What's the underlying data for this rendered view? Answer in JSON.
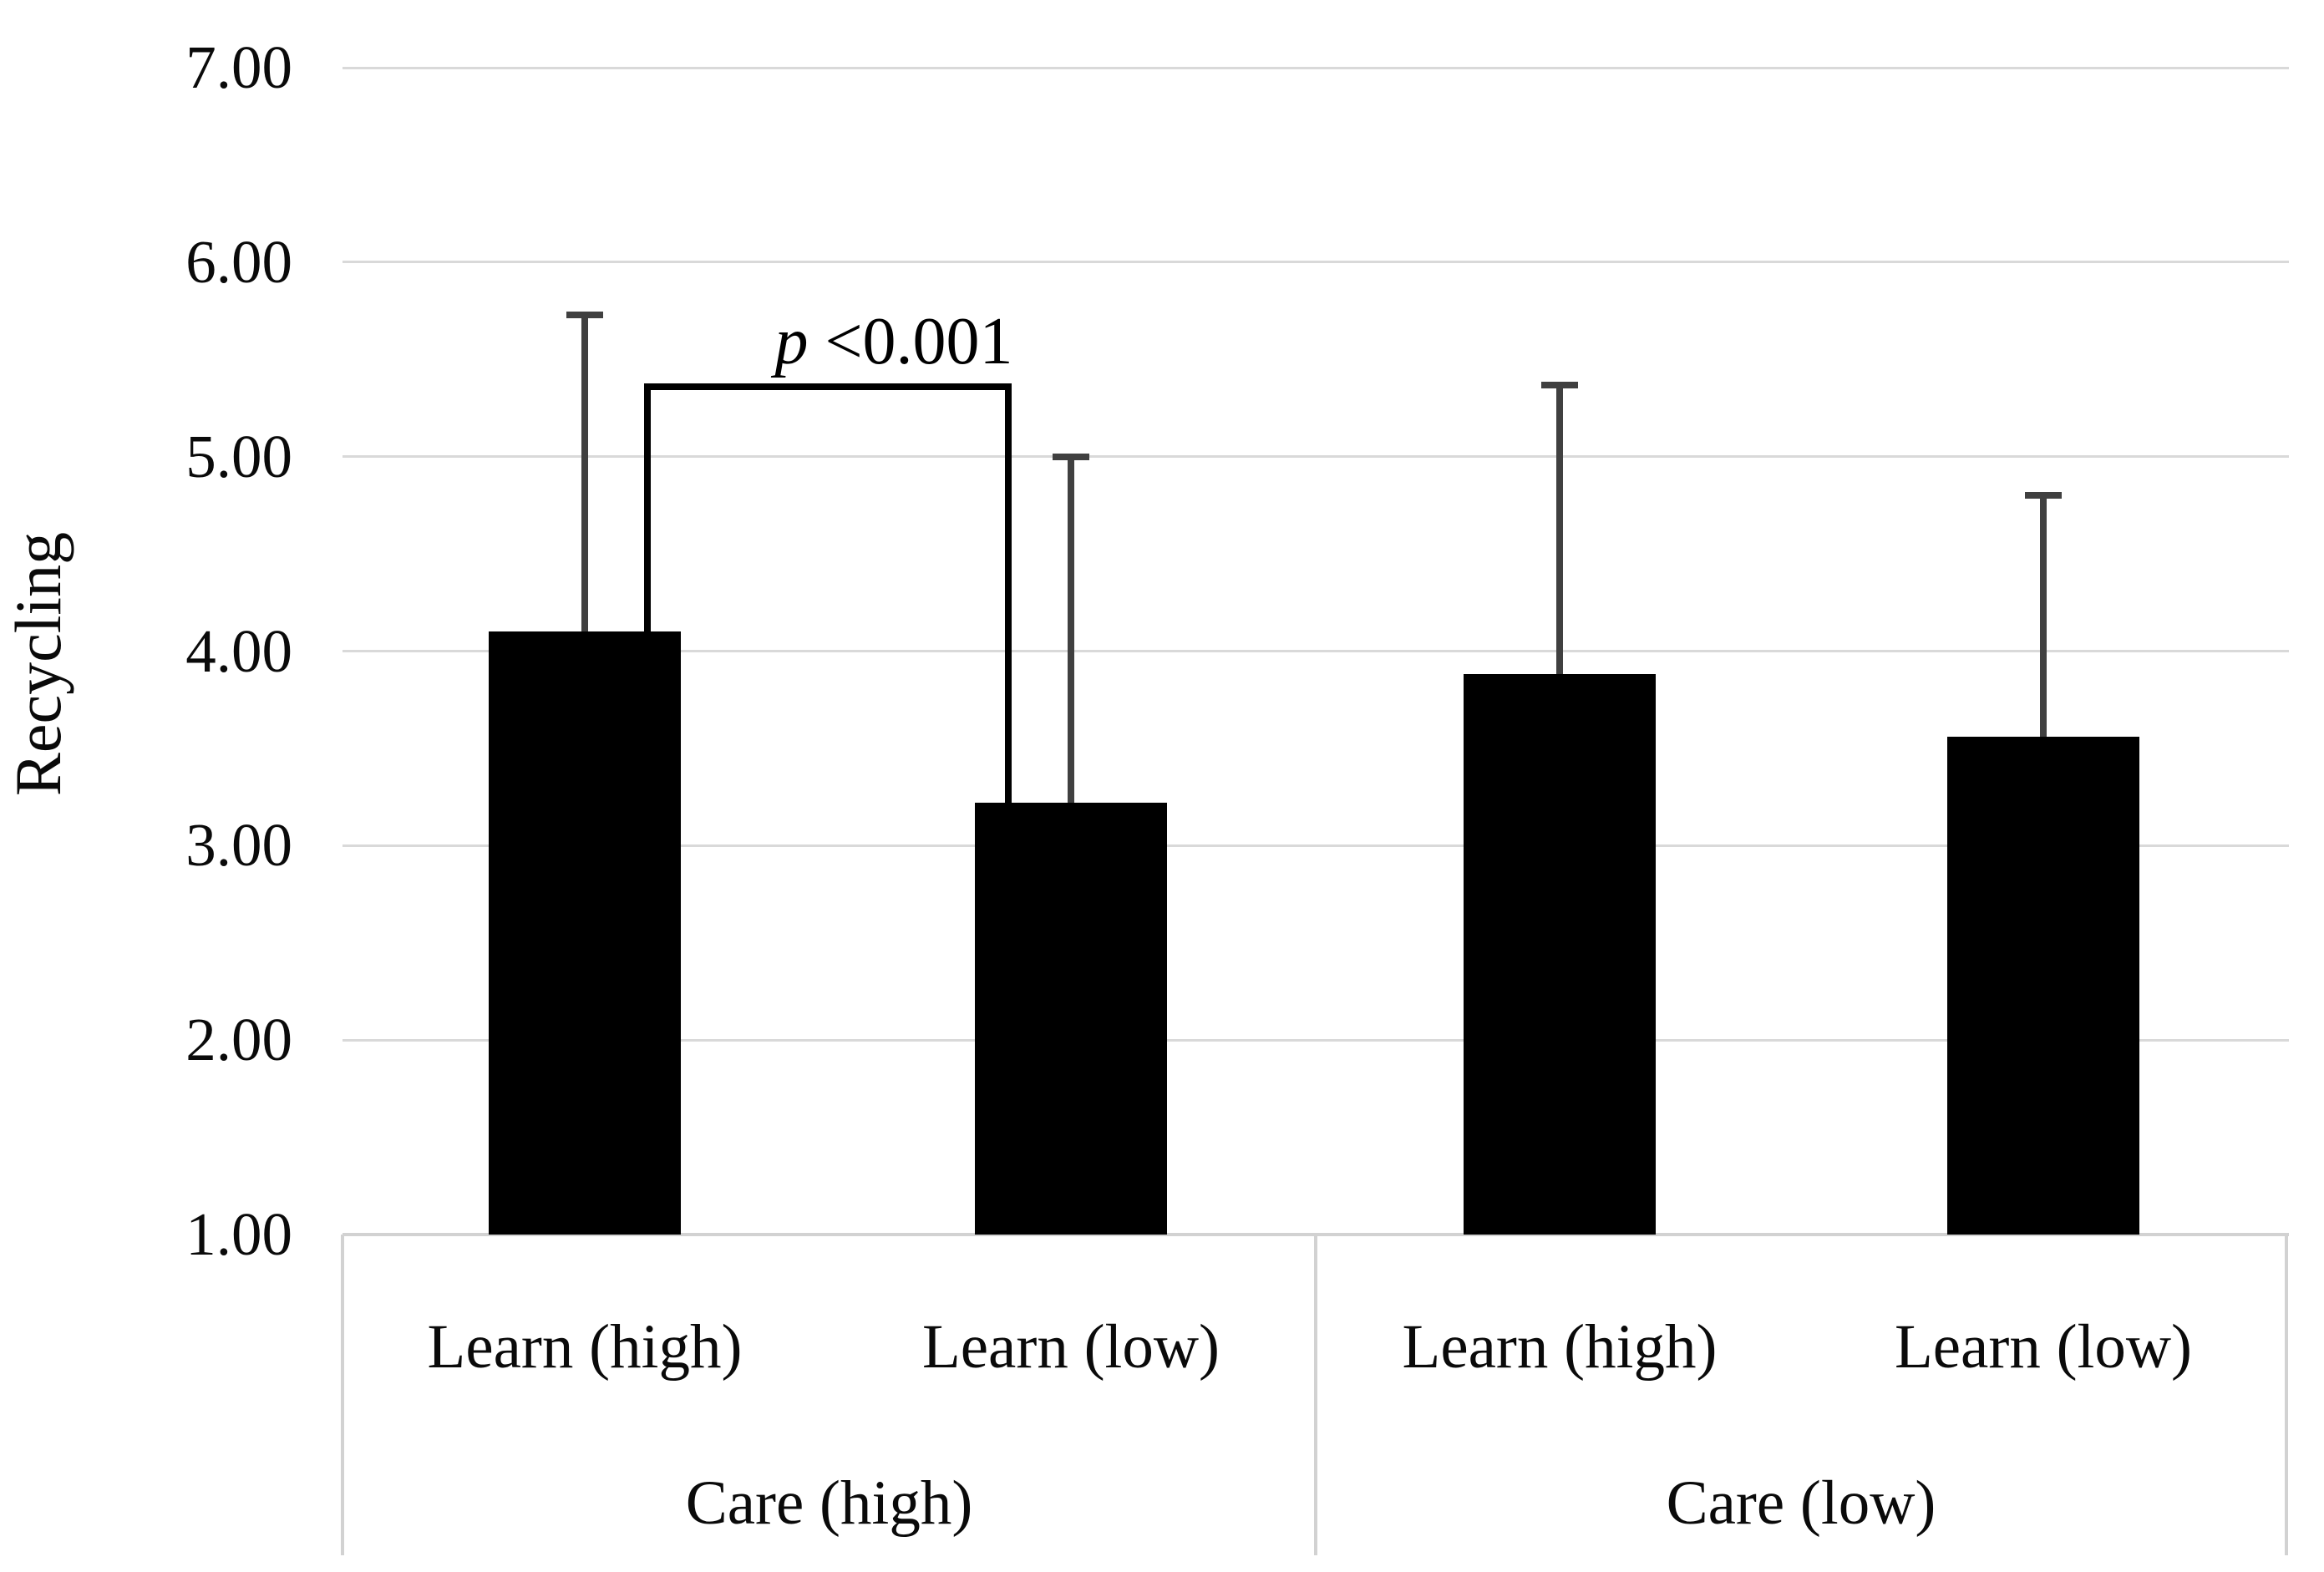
{
  "chart_data": {
    "type": "bar",
    "title": "",
    "ylabel": "Recycling",
    "y_axis": {
      "min": 1.0,
      "max": 7.0,
      "step": 1.0,
      "tick_labels": [
        "7.00",
        "6.00",
        "5.00",
        "4.00",
        "3.00",
        "2.00",
        "1.00"
      ]
    },
    "grid": true,
    "legend": "none",
    "categories": [
      "Learn (high)",
      "Learn (low)",
      "Learn (high)",
      "Learn (low)"
    ],
    "groups": [
      {
        "label": "Care (high)",
        "bars": [
          {
            "label": "Learn (high)",
            "value": 4.1,
            "error_top": 5.73
          },
          {
            "label": "Learn (low)",
            "value": 3.22,
            "error_top": 5.0
          }
        ]
      },
      {
        "label": "Care (low)",
        "bars": [
          {
            "label": "Learn (high)",
            "value": 3.88,
            "error_top": 5.37
          },
          {
            "label": "Learn (low)",
            "value": 3.56,
            "error_top": 4.8
          }
        ]
      }
    ],
    "annotation": {
      "label": "p <0.001",
      "label_italic_part": "p",
      "label_rest": " <0.001",
      "bracket_y": 5.36,
      "between_bars": [
        0,
        1
      ]
    },
    "colors": {
      "bar": "#000000",
      "error_bar": "#404040",
      "gridline": "#d9d9d9",
      "axis_border": "#d2d2d2",
      "text": "#000000"
    }
  }
}
